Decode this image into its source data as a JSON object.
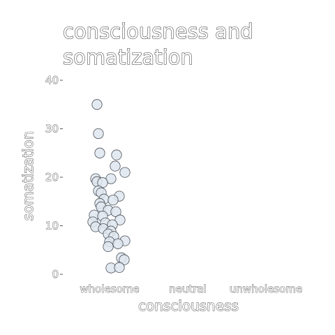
{
  "chart_data": {
    "type": "scatter",
    "title_lines": [
      "consciousness and",
      "somatization"
    ],
    "xlabel": "consciousness",
    "ylabel": "somatization",
    "categories": [
      "wholesome",
      "neutral",
      "unwholesome"
    ],
    "ylim": [
      0,
      40
    ],
    "yticks": [
      0,
      10,
      20,
      30,
      40
    ],
    "grid": false,
    "legend": "none",
    "point_fill": "#dfe6ee",
    "point_stroke": "#4a5058",
    "points": [
      {
        "category": "wholesome",
        "jitter": -0.18,
        "y": 35
      },
      {
        "category": "wholesome",
        "jitter": -0.16,
        "y": 29
      },
      {
        "category": "wholesome",
        "jitter": -0.14,
        "y": 25
      },
      {
        "category": "wholesome",
        "jitter": 0.1,
        "y": 24.6
      },
      {
        "category": "wholesome",
        "jitter": 0.08,
        "y": 22.3
      },
      {
        "category": "wholesome",
        "jitter": 0.22,
        "y": 21
      },
      {
        "category": "wholesome",
        "jitter": -0.2,
        "y": 19.7
      },
      {
        "category": "wholesome",
        "jitter": -0.18,
        "y": 19.1
      },
      {
        "category": "wholesome",
        "jitter": 0.02,
        "y": 19.7
      },
      {
        "category": "wholesome",
        "jitter": -0.1,
        "y": 18.9
      },
      {
        "category": "wholesome",
        "jitter": -0.16,
        "y": 17.2
      },
      {
        "category": "wholesome",
        "jitter": -0.12,
        "y": 16.8
      },
      {
        "category": "wholesome",
        "jitter": 0.14,
        "y": 16.1
      },
      {
        "category": "wholesome",
        "jitter": -0.08,
        "y": 15.5
      },
      {
        "category": "wholesome",
        "jitter": 0.05,
        "y": 15.3
      },
      {
        "category": "wholesome",
        "jitter": -0.14,
        "y": 14.6
      },
      {
        "category": "wholesome",
        "jitter": -0.12,
        "y": 13.9
      },
      {
        "category": "wholesome",
        "jitter": -0.02,
        "y": 13.2
      },
      {
        "category": "wholesome",
        "jitter": 0.09,
        "y": 12.9
      },
      {
        "category": "wholesome",
        "jitter": -0.22,
        "y": 12.2
      },
      {
        "category": "wholesome",
        "jitter": -0.1,
        "y": 12.0
      },
      {
        "category": "wholesome",
        "jitter": 0.15,
        "y": 11.2
      },
      {
        "category": "wholesome",
        "jitter": -0.24,
        "y": 10.8
      },
      {
        "category": "wholesome",
        "jitter": -0.06,
        "y": 10.6
      },
      {
        "category": "wholesome",
        "jitter": 0.04,
        "y": 10.2
      },
      {
        "category": "wholesome",
        "jitter": -0.2,
        "y": 9.8
      },
      {
        "category": "wholesome",
        "jitter": -0.09,
        "y": 9.4
      },
      {
        "category": "wholesome",
        "jitter": 0.02,
        "y": 8.9
      },
      {
        "category": "wholesome",
        "jitter": -0.02,
        "y": 8.3
      },
      {
        "category": "wholesome",
        "jitter": 0.06,
        "y": 7.8
      },
      {
        "category": "wholesome",
        "jitter": 0.0,
        "y": 6.7
      },
      {
        "category": "wholesome",
        "jitter": 0.22,
        "y": 6.9
      },
      {
        "category": "wholesome",
        "jitter": 0.12,
        "y": 6.3
      },
      {
        "category": "wholesome",
        "jitter": -0.02,
        "y": 5.7
      },
      {
        "category": "wholesome",
        "jitter": 0.17,
        "y": 3.4
      },
      {
        "category": "wholesome",
        "jitter": 0.21,
        "y": 3.0
      },
      {
        "category": "wholesome",
        "jitter": 0.02,
        "y": 1.3
      },
      {
        "category": "wholesome",
        "jitter": 0.14,
        "y": 1.4
      }
    ]
  }
}
